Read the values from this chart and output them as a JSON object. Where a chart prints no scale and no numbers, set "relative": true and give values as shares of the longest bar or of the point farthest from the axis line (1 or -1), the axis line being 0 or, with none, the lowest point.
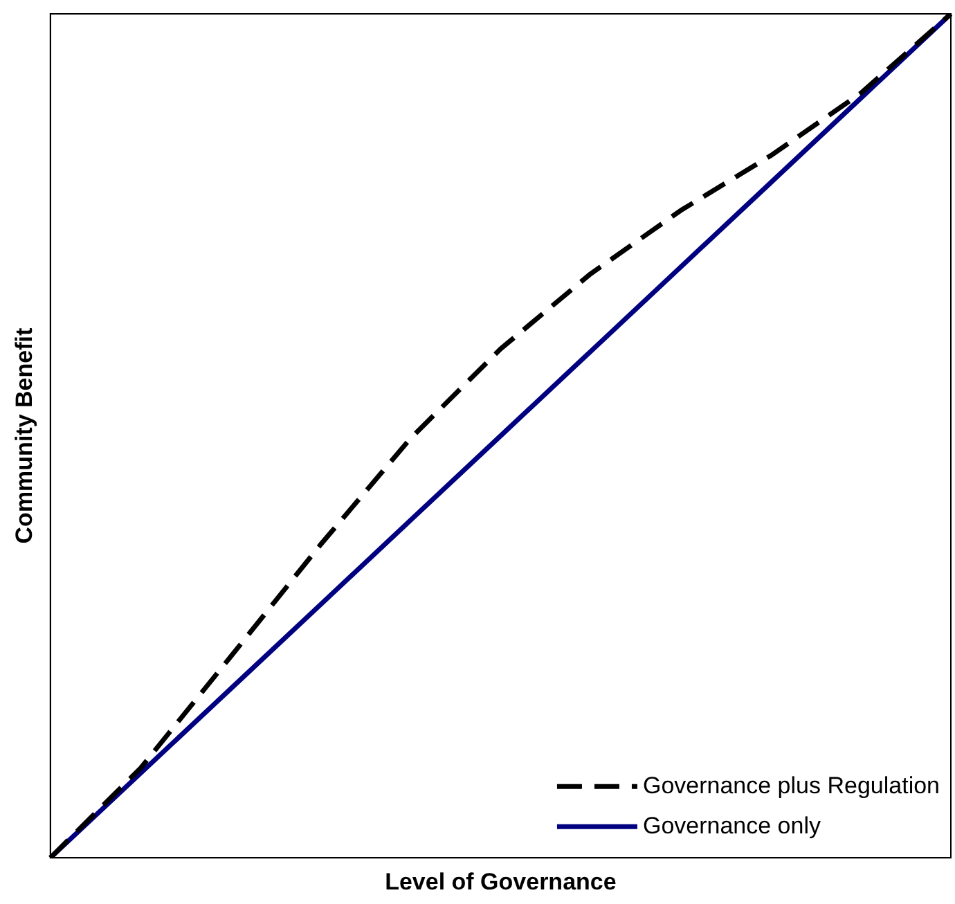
{
  "chart_data": {
    "type": "line",
    "xlabel": "Level of Governance",
    "ylabel": "Community Benefit",
    "relative": true,
    "categories": [
      null,
      null,
      null,
      null,
      null,
      null,
      null,
      null,
      null,
      null,
      null
    ],
    "series": [
      {
        "name": "Governance plus Regulation",
        "color": "#000000",
        "line_style": "dashed",
        "values": [
          0,
          0.106,
          0.238,
          0.371,
          0.497,
          0.603,
          0.692,
          0.767,
          0.832,
          0.906,
          1
        ]
      },
      {
        "name": "Governance only",
        "color": "#000080",
        "line_style": "solid",
        "values": [
          0,
          0.1,
          0.2,
          0.3,
          0.4,
          0.5,
          0.6,
          0.7,
          0.8,
          0.9,
          1
        ]
      }
    ],
    "legend": "bottom right",
    "grid": false,
    "marker": "none"
  }
}
